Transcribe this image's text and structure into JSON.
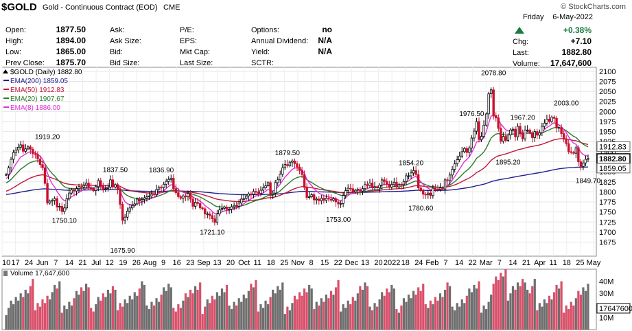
{
  "header": {
    "symbol": "$GOLD",
    "name": "Gold - Continuous Contract (EOD)",
    "exchange": "CME",
    "watermark": "© StockCharts.com",
    "date_day": "Friday",
    "date": "6-May-2022",
    "change_pct": "+0.38%",
    "quote": [
      {
        "label": "Open:",
        "value": "1877.50"
      },
      {
        "label": "High:",
        "value": "1894.00"
      },
      {
        "label": "Low:",
        "value": "1865.00"
      },
      {
        "label": "Prev Close:",
        "value": "1875.70"
      }
    ],
    "ask": [
      {
        "label": "Ask:",
        "value": ""
      },
      {
        "label": "Ask Size:",
        "value": ""
      },
      {
        "label": "Bid:",
        "value": ""
      },
      {
        "label": "Bid Size:",
        "value": ""
      }
    ],
    "fund": [
      {
        "label": "P/E:",
        "value": ""
      },
      {
        "label": "EPS:",
        "value": ""
      },
      {
        "label": "Mkt Cap:",
        "value": ""
      },
      {
        "label": "Last Size:",
        "value": ""
      }
    ],
    "opts": [
      {
        "label": "Options:",
        "value": "no"
      },
      {
        "label": "Annual Dividend:",
        "value": "N/A"
      },
      {
        "label": "Yield:",
        "value": "N/A"
      },
      {
        "label": "SCTR:",
        "value": ""
      }
    ],
    "right": [
      {
        "label": "Chg:",
        "value": "+7.10"
      },
      {
        "label": "Last:",
        "value": "1882.80"
      },
      {
        "label": "Volume:",
        "value": "17,647,600"
      }
    ]
  },
  "chart_data": {
    "type": "candlestick",
    "title": "$GOLD (Daily) 1882.80",
    "ylim": [
      1640,
      2110
    ],
    "y_ticks": [
      1675,
      1700,
      1725,
      1750,
      1775,
      1800,
      1825,
      1850,
      1875,
      1900,
      1925,
      1950,
      1975,
      2000,
      2025,
      2050,
      2075,
      2100
    ],
    "x_ticks": [
      "10",
      "17",
      "24",
      "Jun",
      "7",
      "14",
      "21",
      "Jul",
      "12",
      "19",
      "26",
      "Aug",
      "9",
      "16",
      "23",
      "Sep",
      "13",
      "20",
      "Oct",
      "11",
      "18",
      "25",
      "Nov",
      "8",
      "15",
      "22",
      "Dec",
      "13",
      "20",
      "2022",
      "18",
      "24",
      "Feb",
      "7",
      "14",
      "22",
      "Mar",
      "7",
      "14",
      "21",
      "Apr",
      "11",
      "18",
      "25",
      "May"
    ],
    "closes": [
      1843,
      1860,
      1881,
      1898,
      1904,
      1911,
      1917,
      1901,
      1907,
      1912,
      1906,
      1895,
      1893,
      1882,
      1868,
      1860,
      1821,
      1772,
      1777,
      1779,
      1783,
      1762,
      1764,
      1751,
      1760,
      1783,
      1797,
      1805,
      1802,
      1808,
      1813,
      1812,
      1816,
      1822,
      1811,
      1808,
      1803,
      1813,
      1828,
      1815,
      1807,
      1808,
      1812,
      1830,
      1812,
      1818,
      1806,
      1769,
      1729,
      1737,
      1752,
      1760,
      1766,
      1770,
      1782,
      1777,
      1781,
      1785,
      1788,
      1790,
      1794,
      1793,
      1806,
      1812,
      1811,
      1819,
      1826,
      1831,
      1834,
      1808,
      1798,
      1788,
      1784,
      1790,
      1788,
      1796,
      1782,
      1764,
      1774,
      1771,
      1760,
      1758,
      1745,
      1745,
      1741,
      1733,
      1724,
      1745,
      1755,
      1759,
      1762,
      1756,
      1757,
      1763,
      1766,
      1764,
      1772,
      1782,
      1783,
      1790,
      1795,
      1794,
      1801,
      1800,
      1796,
      1804,
      1810,
      1815,
      1823,
      1793,
      1797,
      1823,
      1830,
      1844,
      1860,
      1868,
      1865,
      1874,
      1877,
      1870,
      1862,
      1853,
      1843,
      1811,
      1786,
      1788,
      1793,
      1780,
      1782,
      1778,
      1784,
      1779,
      1784,
      1782,
      1779,
      1783,
      1775,
      1770,
      1771,
      1791,
      1803,
      1809,
      1808,
      1800,
      1804,
      1806,
      1802,
      1808,
      1818,
      1816,
      1822,
      1810,
      1813,
      1810,
      1817,
      1830,
      1826,
      1819,
      1812,
      1818,
      1824,
      1812,
      1819,
      1818,
      1826,
      1840,
      1840,
      1847,
      1853,
      1843,
      1810,
      1803,
      1794,
      1793,
      1797,
      1791,
      1809,
      1807,
      1806,
      1810,
      1807,
      1830,
      1828,
      1842,
      1856,
      1870,
      1880,
      1889,
      1900,
      1908,
      1898,
      1909,
      1934,
      1951,
      1975,
      1930,
      1938,
      1966,
      1994,
      2044,
      2054,
      1990,
      1984,
      1958,
      1926,
      1938,
      1928,
      1942,
      1954,
      1956,
      1937,
      1963,
      1945,
      1932,
      1954,
      1954,
      1947,
      1935,
      1950,
      1941,
      1947,
      1963,
      1971,
      1981,
      1975,
      1986,
      1983,
      1959,
      1960,
      1945,
      1931,
      1920,
      1900,
      1898,
      1896,
      1910,
      1875,
      1863,
      1872,
      1881,
      1883
    ],
    "highs_marks": [
      {
        "label": "1919.20",
        "x": 17,
        "y": 1919.2
      },
      {
        "label": "1750.10",
        "x": 24,
        "y": 1750.1
      },
      {
        "label": "1837.50",
        "x": 45,
        "y": 1837.5
      },
      {
        "label": "1675.90",
        "x": 48,
        "y": 1675.9
      },
      {
        "label": "1836.90",
        "x": 64,
        "y": 1836.9
      },
      {
        "label": "1721.10",
        "x": 85,
        "y": 1721.1
      },
      {
        "label": "1879.50",
        "x": 116,
        "y": 1879.5
      },
      {
        "label": "1753.00",
        "x": 137,
        "y": 1753
      },
      {
        "label": "1854.20",
        "x": 167,
        "y": 1854.2
      },
      {
        "label": "1780.60",
        "x": 171,
        "y": 1780.6
      },
      {
        "label": "1976.50",
        "x": 192,
        "y": 1976.5
      },
      {
        "label": "2078.80",
        "x": 201,
        "y": 2078.8
      },
      {
        "label": "1967.20",
        "x": 213,
        "y": 1967.2
      },
      {
        "label": "1895.20",
        "x": 207,
        "y": 1895.2
      },
      {
        "label": "2003.00",
        "x": 231,
        "y": 2003
      },
      {
        "label": "1849.70",
        "x": 240,
        "y": 1849.7
      }
    ],
    "ema": [
      {
        "name": "EMA(200)",
        "value": "1859.05",
        "color": "#1f1f8f",
        "period": 200,
        "seed": 1793
      },
      {
        "name": "EMA(50)",
        "value": "1912.83",
        "color": "#c0183a",
        "period": 50,
        "seed": 1800
      },
      {
        "name": "EMA(20)",
        "value": "1907.67",
        "color": "#2a7a2a",
        "period": 20,
        "seed": 1820
      },
      {
        "name": "EMA(8)",
        "value": "1886.00",
        "color": "#e02fd8",
        "period": 8,
        "seed": 1830
      }
    ],
    "price_tags": [
      {
        "value": "1912.83",
        "y": 1912.83,
        "style": "plain"
      },
      {
        "value": "1882.80",
        "y": 1882.8,
        "style": "bold"
      },
      {
        "value": "1859.05",
        "y": 1859.05,
        "style": "plain"
      }
    ],
    "volume": {
      "title": "Volume 17,647,600",
      "y_ticks": [
        "40M",
        "30M",
        "20M",
        "17647600",
        "10M"
      ],
      "ylim": [
        0,
        50
      ]
    }
  }
}
